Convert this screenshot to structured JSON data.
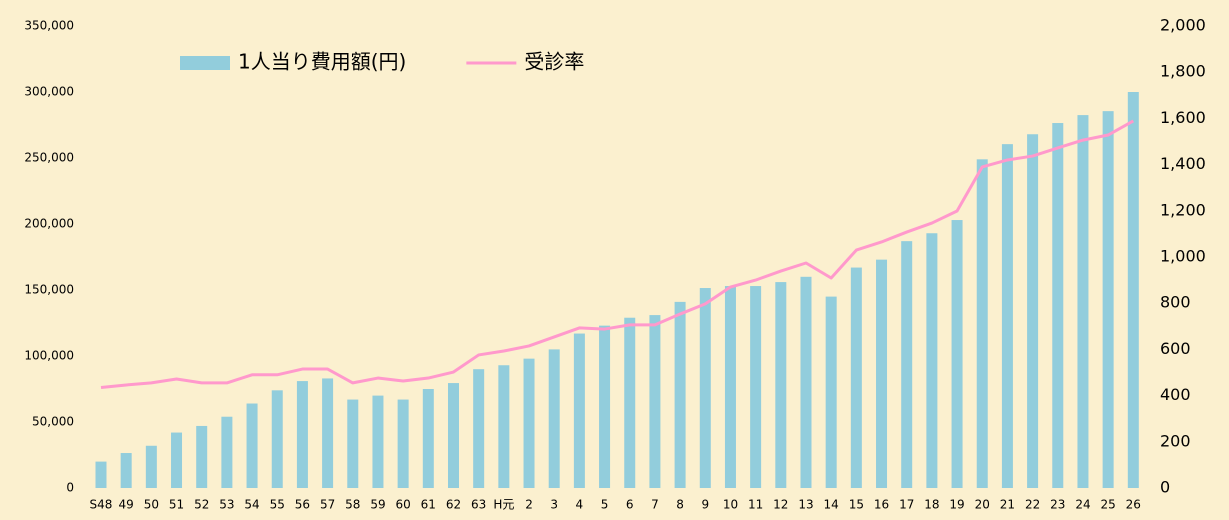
{
  "chart_data": {
    "type": "bar",
    "categories": [
      "S48",
      "49",
      "50",
      "51",
      "52",
      "53",
      "54",
      "55",
      "56",
      "57",
      "58",
      "59",
      "60",
      "61",
      "62",
      "63",
      "H元",
      "2",
      "3",
      "4",
      "5",
      "6",
      "7",
      "8",
      "9",
      "10",
      "11",
      "12",
      "13",
      "14",
      "15",
      "16",
      "17",
      "18",
      "19",
      "20",
      "21",
      "22",
      "23",
      "24",
      "25",
      "26"
    ],
    "series": [
      {
        "name": "1人当り費用額(円)",
        "type": "bar",
        "color": "#92cddc",
        "values": [
          20000,
          26500,
          32000,
          42000,
          47000,
          54000,
          64000,
          74000,
          81000,
          83000,
          67000,
          70000,
          67000,
          75000,
          79500,
          90000,
          93000,
          98000,
          105000,
          117000,
          123000,
          129000,
          131000,
          141000,
          151500,
          153000,
          153000,
          156000,
          160000,
          145000,
          167000,
          173000,
          187000,
          193000,
          203000,
          249000,
          260500,
          268000,
          276500,
          282500,
          285500,
          300000
        ]
      },
      {
        "name": "受診率",
        "type": "line",
        "axis": "y2",
        "color": "#ff99cc",
        "values": [
          435,
          446,
          455,
          472,
          455,
          455,
          490,
          490,
          515,
          515,
          455,
          476,
          463,
          476,
          502,
          576,
          593,
          615,
          654,
          693,
          688,
          706,
          706,
          753,
          797,
          870,
          900,
          939,
          974,
          909,
          1030,
          1065,
          1108,
          1147,
          1199,
          1390,
          1420,
          1437,
          1472,
          1506,
          1528,
          1589
        ]
      }
    ],
    "ylim": [
      0,
      350000
    ],
    "yticks": [
      0,
      {
        "value": 50000,
        "label": "50,000"
      },
      {
        "value": 100000,
        "label": "100,000"
      },
      {
        "value": 150000,
        "label": "150,000"
      },
      {
        "value": 200000,
        "label": "200,000"
      },
      {
        "value": 250000,
        "label": "250,000"
      },
      {
        "value": 300000,
        "label": "300,000"
      },
      {
        "value": 350000,
        "label": "350,000"
      }
    ],
    "y2lim": [
      0,
      2000
    ],
    "y2ticks": [
      0,
      200,
      400,
      600,
      800,
      {
        "value": 1000,
        "label": "1,000"
      },
      {
        "value": 1200,
        "label": "1,200"
      },
      {
        "value": 1400,
        "label": "1,400"
      },
      {
        "value": 1600,
        "label": "1,600"
      },
      {
        "value": 1800,
        "label": "1,800"
      },
      {
        "value": 2000,
        "label": "2,000"
      }
    ],
    "legend": "top-left"
  }
}
